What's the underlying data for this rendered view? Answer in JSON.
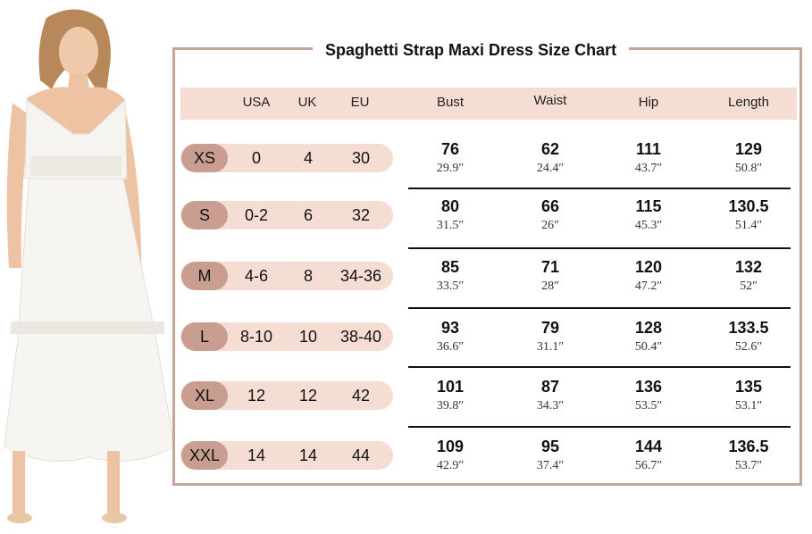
{
  "title": "Spaghetti Strap Maxi Dress Size Chart",
  "columns": [
    "USA",
    "UK",
    "EU",
    "Bust",
    "Waist",
    "Hip",
    "Length"
  ],
  "rows": [
    {
      "size": "XS",
      "usa": "0",
      "uk": "4",
      "eu": "30",
      "bust": "76",
      "bust_in": "29.9″",
      "waist": "62",
      "waist_in": "24.4″",
      "hip": "111",
      "hip_in": "43.7″",
      "length": "129",
      "length_in": "50.8″"
    },
    {
      "size": "S",
      "usa": "0-2",
      "uk": "6",
      "eu": "32",
      "bust": "80",
      "bust_in": "31.5″",
      "waist": "66",
      "waist_in": "26″",
      "hip": "115",
      "hip_in": "45.3″",
      "length": "130.5",
      "length_in": "51.4″"
    },
    {
      "size": "M",
      "usa": "4-6",
      "uk": "8",
      "eu": "34-36",
      "bust": "85",
      "bust_in": "33.5″",
      "waist": "71",
      "waist_in": "28″",
      "hip": "120",
      "hip_in": "47.2″",
      "length": "132",
      "length_in": "52″"
    },
    {
      "size": "L",
      "usa": "8-10",
      "uk": "10",
      "eu": "38-40",
      "bust": "93",
      "bust_in": "36.6″",
      "waist": "79",
      "waist_in": "31.1″",
      "hip": "128",
      "hip_in": "50.4″",
      "length": "133.5",
      "length_in": "52.6″"
    },
    {
      "size": "XL",
      "usa": "12",
      "uk": "12",
      "eu": "42",
      "bust": "101",
      "bust_in": "39.8″",
      "waist": "87",
      "waist_in": "34.3″",
      "hip": "136",
      "hip_in": "53.5″",
      "length": "135",
      "length_in": "53.1″"
    },
    {
      "size": "XXL",
      "usa": "14",
      "uk": "14",
      "eu": "44",
      "bust": "109",
      "bust_in": "42.9″",
      "waist": "95",
      "waist_in": "37.4″",
      "hip": "144",
      "hip_in": "56.7″",
      "length": "136.5",
      "length_in": "53.7″"
    }
  ],
  "colors": {
    "accent": "#c99e90",
    "band": "#f6ddd4",
    "frame": "#c8a499"
  },
  "photo": {
    "icon": "model-photo"
  }
}
